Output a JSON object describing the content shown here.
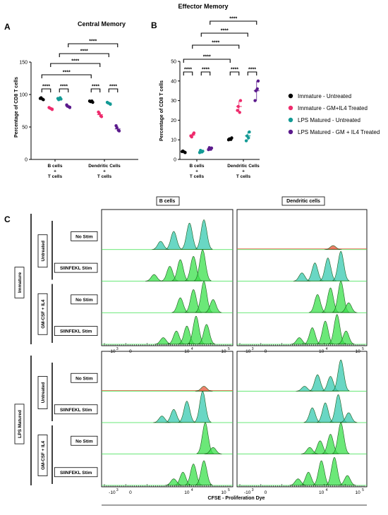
{
  "panel_letters": [
    "A",
    "B",
    "C"
  ],
  "colors": {
    "immature_untreated": "#000000",
    "immature_gm": "#ee2b6c",
    "lps_untreated": "#139a95",
    "lps_gm": "#5b1a8c",
    "hist_green": "#39e04b",
    "hist_cyan": "#37c9b0",
    "hist_red": "#e8573b",
    "hist_dark": "#1c5a1c"
  },
  "legend": [
    {
      "label": "Immature - Untreated",
      "color": "#000000"
    },
    {
      "label": "Immature - GM+IL4 Treated",
      "color": "#ee2b6c"
    },
    {
      "label": "LPS Matured - Untreated",
      "color": "#139a95"
    },
    {
      "label": "LPS Matured - GM + IL4 Treated",
      "color": "#5b1a8c"
    }
  ],
  "chart_data": [
    {
      "type": "scatter",
      "title": "Central Memory",
      "ylabel": "Percentage of CD8  T cells",
      "ylim": [
        0,
        150
      ],
      "yticks": [
        "0",
        "50",
        "100",
        "150"
      ],
      "groups": [
        {
          "label": [
            "B cells",
            "+",
            "T cells"
          ],
          "means": [
            93,
            79,
            93,
            82
          ]
        },
        {
          "label": [
            "Dendritic Cells",
            "+",
            "T cells"
          ],
          "means": [
            89,
            69,
            87,
            47
          ]
        }
      ],
      "points": [
        [
          [
            94,
            92,
            95,
            93
          ],
          [
            80,
            77,
            79,
            78
          ],
          [
            94,
            93,
            92,
            95
          ],
          [
            84,
            80,
            82,
            81
          ]
        ],
        [
          [
            90,
            88,
            89,
            90
          ],
          [
            73,
            66,
            71,
            67
          ],
          [
            88,
            85,
            87,
            86
          ],
          [
            52,
            44,
            49,
            45
          ]
        ]
      ],
      "significance": [
        {
          "level": 0,
          "label": "****"
        },
        {
          "level": 0,
          "label": "****"
        },
        {
          "level": 0,
          "label": "****"
        },
        {
          "level": 0,
          "label": "****"
        },
        {
          "level": 1,
          "label": "****"
        },
        {
          "level": 2,
          "label": "****"
        },
        {
          "level": 3,
          "label": "****"
        },
        {
          "level": 4,
          "label": "****"
        }
      ]
    },
    {
      "type": "scatter",
      "title": "Effector Memory",
      "ylabel": "Percentage of CD8  T cells",
      "ylim": [
        0,
        50
      ],
      "yticks": [
        "0",
        "10",
        "20",
        "30",
        "40",
        "50"
      ],
      "groups": [
        {
          "label": [
            "B cells",
            "+",
            "T cells"
          ],
          "means": [
            4,
            12.5,
            4,
            5.5
          ]
        },
        {
          "label": [
            "Dendritic Cells",
            "+",
            "T cells"
          ],
          "means": [
            10.5,
            27,
            12,
            35
          ]
        }
      ],
      "points": [
        [
          [
            4,
            3.5,
            4.3,
            3.8
          ],
          [
            12,
            13.5,
            11.5,
            12.8
          ],
          [
            3.5,
            4.2,
            4.6,
            3.8
          ],
          [
            5,
            5.8,
            6,
            5.2
          ]
        ],
        [
          [
            10,
            11,
            10.5,
            10.2
          ],
          [
            25,
            30,
            27,
            24
          ],
          [
            9.5,
            14,
            12,
            11
          ],
          [
            30,
            40,
            35,
            36
          ]
        ]
      ],
      "significance": [
        {
          "label": "****"
        },
        {
          "label": "****"
        },
        {
          "label": "****"
        },
        {
          "label": "****"
        },
        {
          "label": "****"
        },
        {
          "label": "****"
        },
        {
          "label": "****"
        },
        {
          "label": "****"
        }
      ]
    },
    {
      "type": "histogram",
      "xlabel": "CFSE - Proliferation Dye",
      "column_titles": [
        "B cells",
        "Dendritic cells"
      ],
      "x_ticks": [
        "-10",
        "3",
        "0",
        "10",
        "3",
        "10",
        "4",
        "10",
        "5"
      ],
      "blocks": [
        {
          "maturation": "Immature",
          "treatments": [
            "Untreated",
            "GM-CSF + IL4"
          ],
          "rows": [
            "No Stim",
            "SIINFEKL Stim",
            "No Stim",
            "SIINFEKL Stim"
          ]
        },
        {
          "maturation": "LPS Matured",
          "treatments": [
            "Untreated",
            "GM-CSF + IL4"
          ],
          "rows": [
            "No Stim",
            "SIINFEKL Stim",
            "No Stim",
            "SIINFEKL Stim"
          ]
        }
      ]
    }
  ],
  "tick_labels": {
    "neg": "-10",
    "zero": "0",
    "ten": "10",
    "e3": "3",
    "e4": "4",
    "e5": "5"
  }
}
